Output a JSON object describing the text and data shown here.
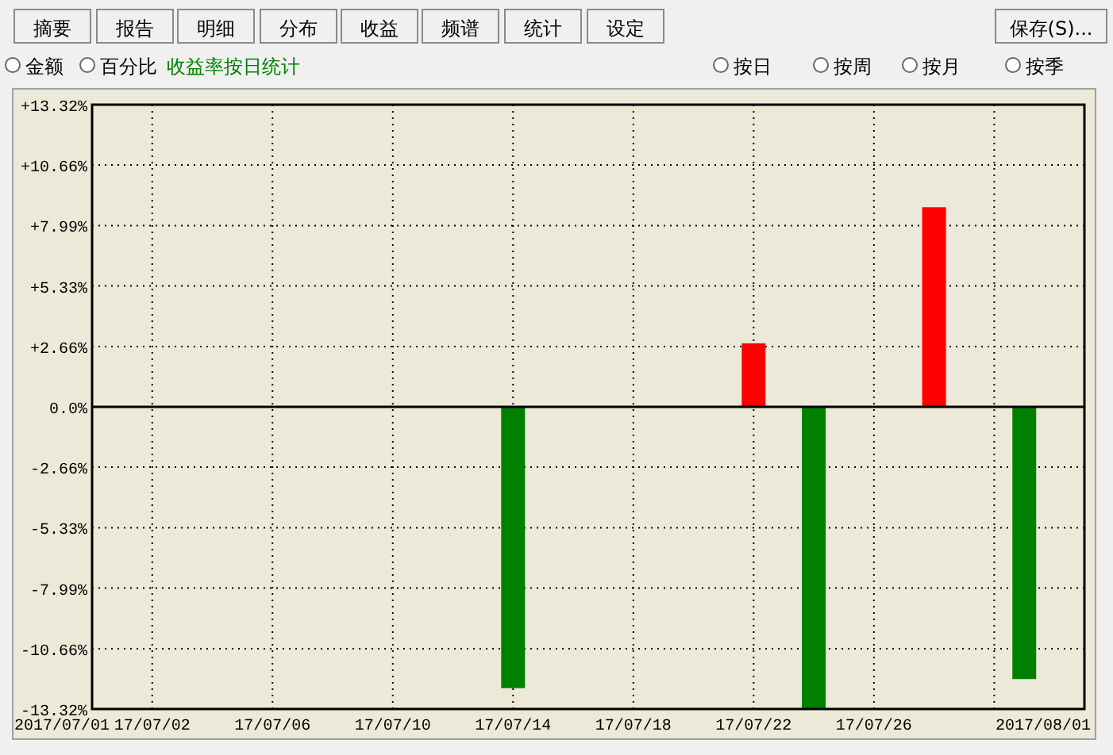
{
  "chart_data": {
    "type": "bar",
    "subtitle": "收益率按日统计",
    "annotations": [
      "摘要",
      "报告",
      "明细",
      "分布",
      "收益",
      "频谱",
      "统计",
      "设定",
      "保存(S)...",
      "金额",
      "百分比",
      "按日",
      "按周",
      "按月",
      "按季",
      "2017/07/01",
      "2017/08/01"
    ],
    "x": [
      "2017-07-14",
      "2017-07-22",
      "2017-07-24",
      "2017-07-28",
      "2017-07-31"
    ],
    "series": [
      {
        "colors": [
          "#008000",
          "#ff0000",
          "#008000",
          "#ff0000",
          "#008000"
        ],
        "values": [
          -12.4,
          2.8,
          -13.3,
          8.8,
          -12.0
        ]
      }
    ],
    "xlim": [
      "2017-06-30",
      "2017-08-02"
    ],
    "xticks": [
      {
        "value": "2017-07-02",
        "label": "17/07/02"
      },
      {
        "value": "2017-07-06",
        "label": "17/07/06"
      },
      {
        "value": "2017-07-10",
        "label": "17/07/10"
      },
      {
        "value": "2017-07-14",
        "label": "17/07/14"
      },
      {
        "value": "2017-07-18",
        "label": "17/07/18"
      },
      {
        "value": "2017-07-22",
        "label": "17/07/22"
      },
      {
        "value": "2017-07-26",
        "label": "17/07/26"
      },
      {
        "value": "2017-07-30",
        "label": null
      }
    ],
    "ylim": [
      -13.32,
      13.32
    ],
    "yticks": [
      {
        "value": 13.32,
        "label": "+13.32%"
      },
      {
        "value": 10.66,
        "label": "+10.66%"
      },
      {
        "value": 7.99,
        "label": "+7.99%"
      },
      {
        "value": 5.33,
        "label": "+5.33%"
      },
      {
        "value": 2.66,
        "label": "+2.66%"
      },
      {
        "value": 0,
        "label": "0.0%"
      },
      {
        "value": -2.66,
        "label": "-2.66%"
      },
      {
        "value": -5.33,
        "label": "-5.33%"
      },
      {
        "value": -7.99,
        "label": "-7.99%"
      },
      {
        "value": -10.66,
        "label": "-10.66%"
      },
      {
        "value": -13.32,
        "label": "-13.32%"
      }
    ],
    "grid": true
  }
}
